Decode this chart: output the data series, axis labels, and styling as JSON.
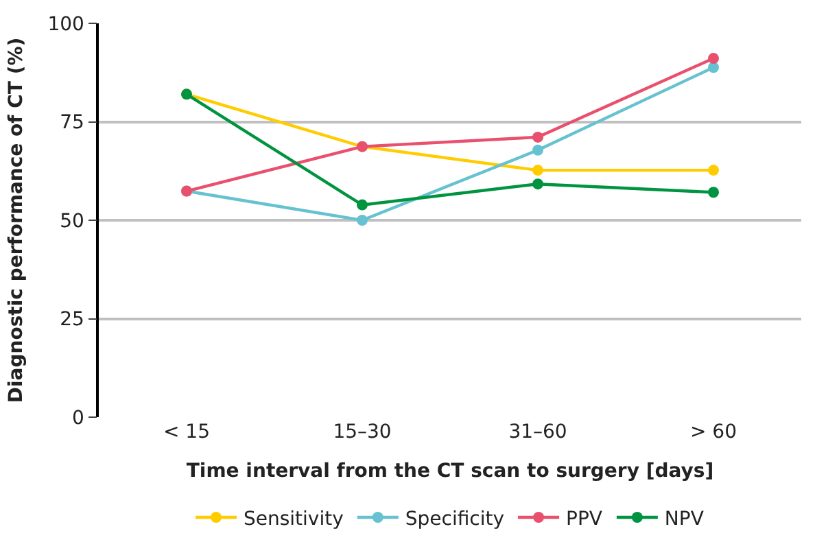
{
  "chart_data": {
    "type": "line",
    "xlabel": "Time interval from the CT scan to surgery [days]",
    "ylabel": "Diagnostic performance of CT (%)",
    "categories": [
      "< 15",
      "15–30",
      "31–60",
      "> 60"
    ],
    "series": [
      {
        "name": "Sensitivity",
        "color": "#ffcc00",
        "values": [
          82,
          68.7,
          62.7,
          62.7
        ]
      },
      {
        "name": "Specificity",
        "color": "#66c2d0",
        "values": [
          57.4,
          50,
          67.8,
          88.8
        ]
      },
      {
        "name": "PPV",
        "color": "#e8506e",
        "values": [
          57.4,
          68.7,
          71.1,
          91.1
        ]
      },
      {
        "name": "NPV",
        "color": "#009440",
        "values": [
          82,
          53.9,
          59.2,
          57.1
        ]
      }
    ],
    "ylim": [
      0,
      100
    ],
    "yticks": [
      0,
      25,
      50,
      75,
      100
    ],
    "grid": "y",
    "legend": "bottom",
    "marker": "circle",
    "line_style": "solid"
  }
}
